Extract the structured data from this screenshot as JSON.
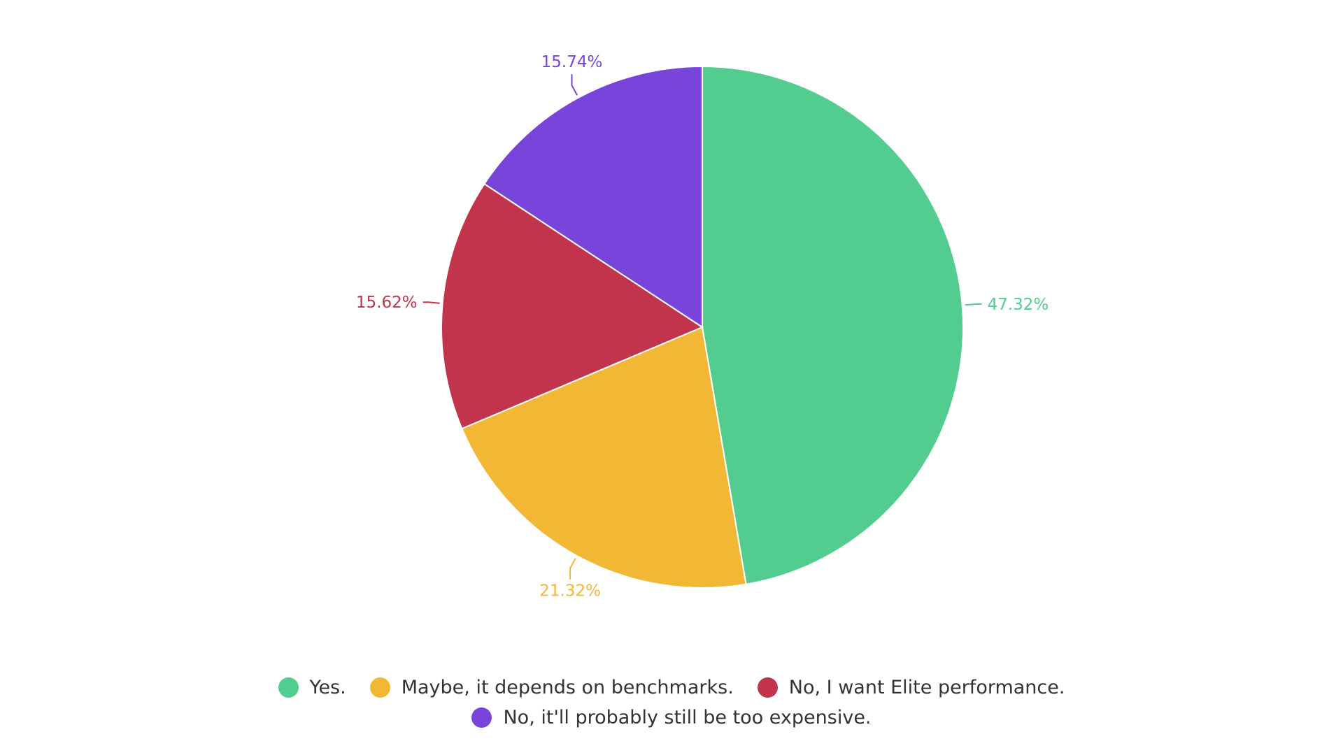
{
  "chart_data": {
    "type": "pie",
    "title": "",
    "categories": [
      "Yes.",
      "Maybe, it depends on benchmarks.",
      "No, I want Elite performance.",
      "No, it'll probably still be too expensive."
    ],
    "values": [
      47.32,
      21.32,
      15.62,
      15.74
    ],
    "value_labels": [
      "47.32%",
      "21.32%",
      "15.62%",
      "15.74%"
    ],
    "colors": [
      "#52CC8F",
      "#F3B736",
      "#C1344C",
      "#7944D9"
    ],
    "legend_position": "bottom",
    "start_angle": "top",
    "direction": "clockwise"
  }
}
